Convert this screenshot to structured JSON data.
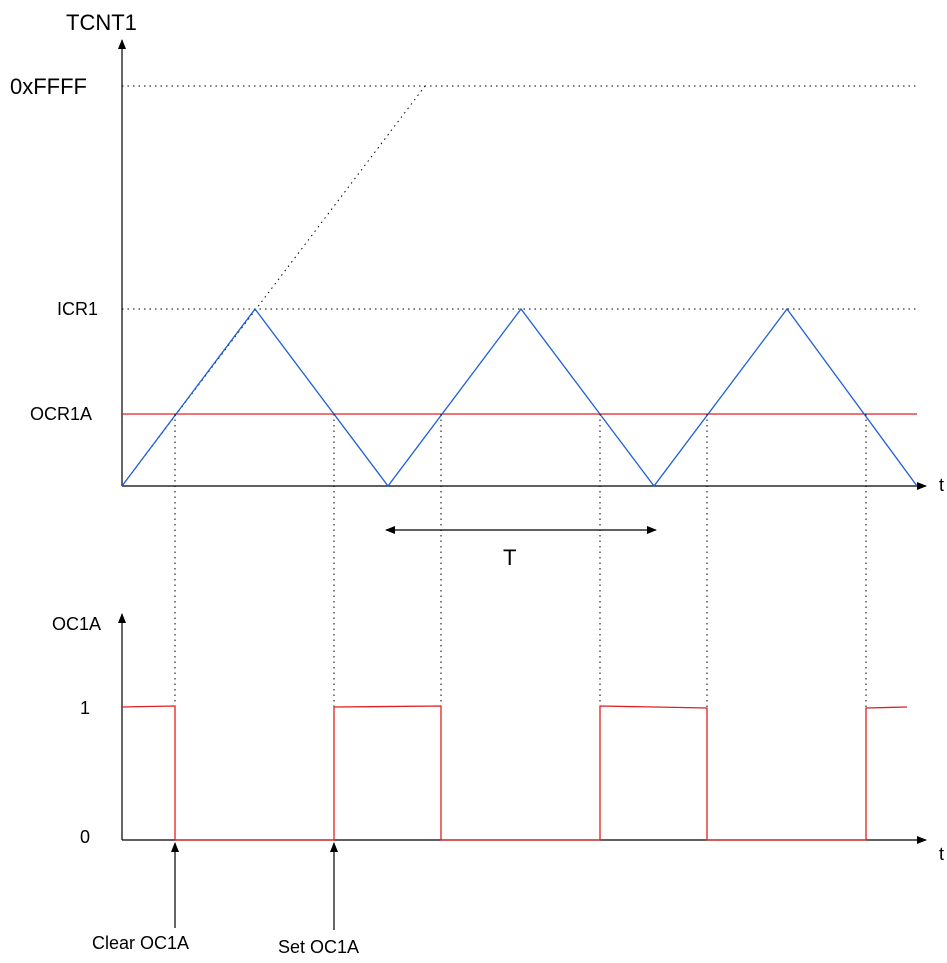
{
  "top_plot": {
    "y_axis_label": "TCNT1",
    "x_axis_label": "t",
    "levels": {
      "max": "0xFFFF",
      "top": "ICR1",
      "compare": "OCR1A"
    },
    "period_label": "T"
  },
  "bottom_plot": {
    "y_axis_label": "OC1A",
    "x_axis_label": "t",
    "high_label": "1",
    "low_label": "0"
  },
  "annotations": {
    "clear": "Clear OC1A",
    "set": "Set OC1A"
  },
  "colors": {
    "counter": "#1f5fd6",
    "compare_line": "#e02020",
    "output": "#e02020",
    "axis": "#000000",
    "guide": "#000000"
  }
}
